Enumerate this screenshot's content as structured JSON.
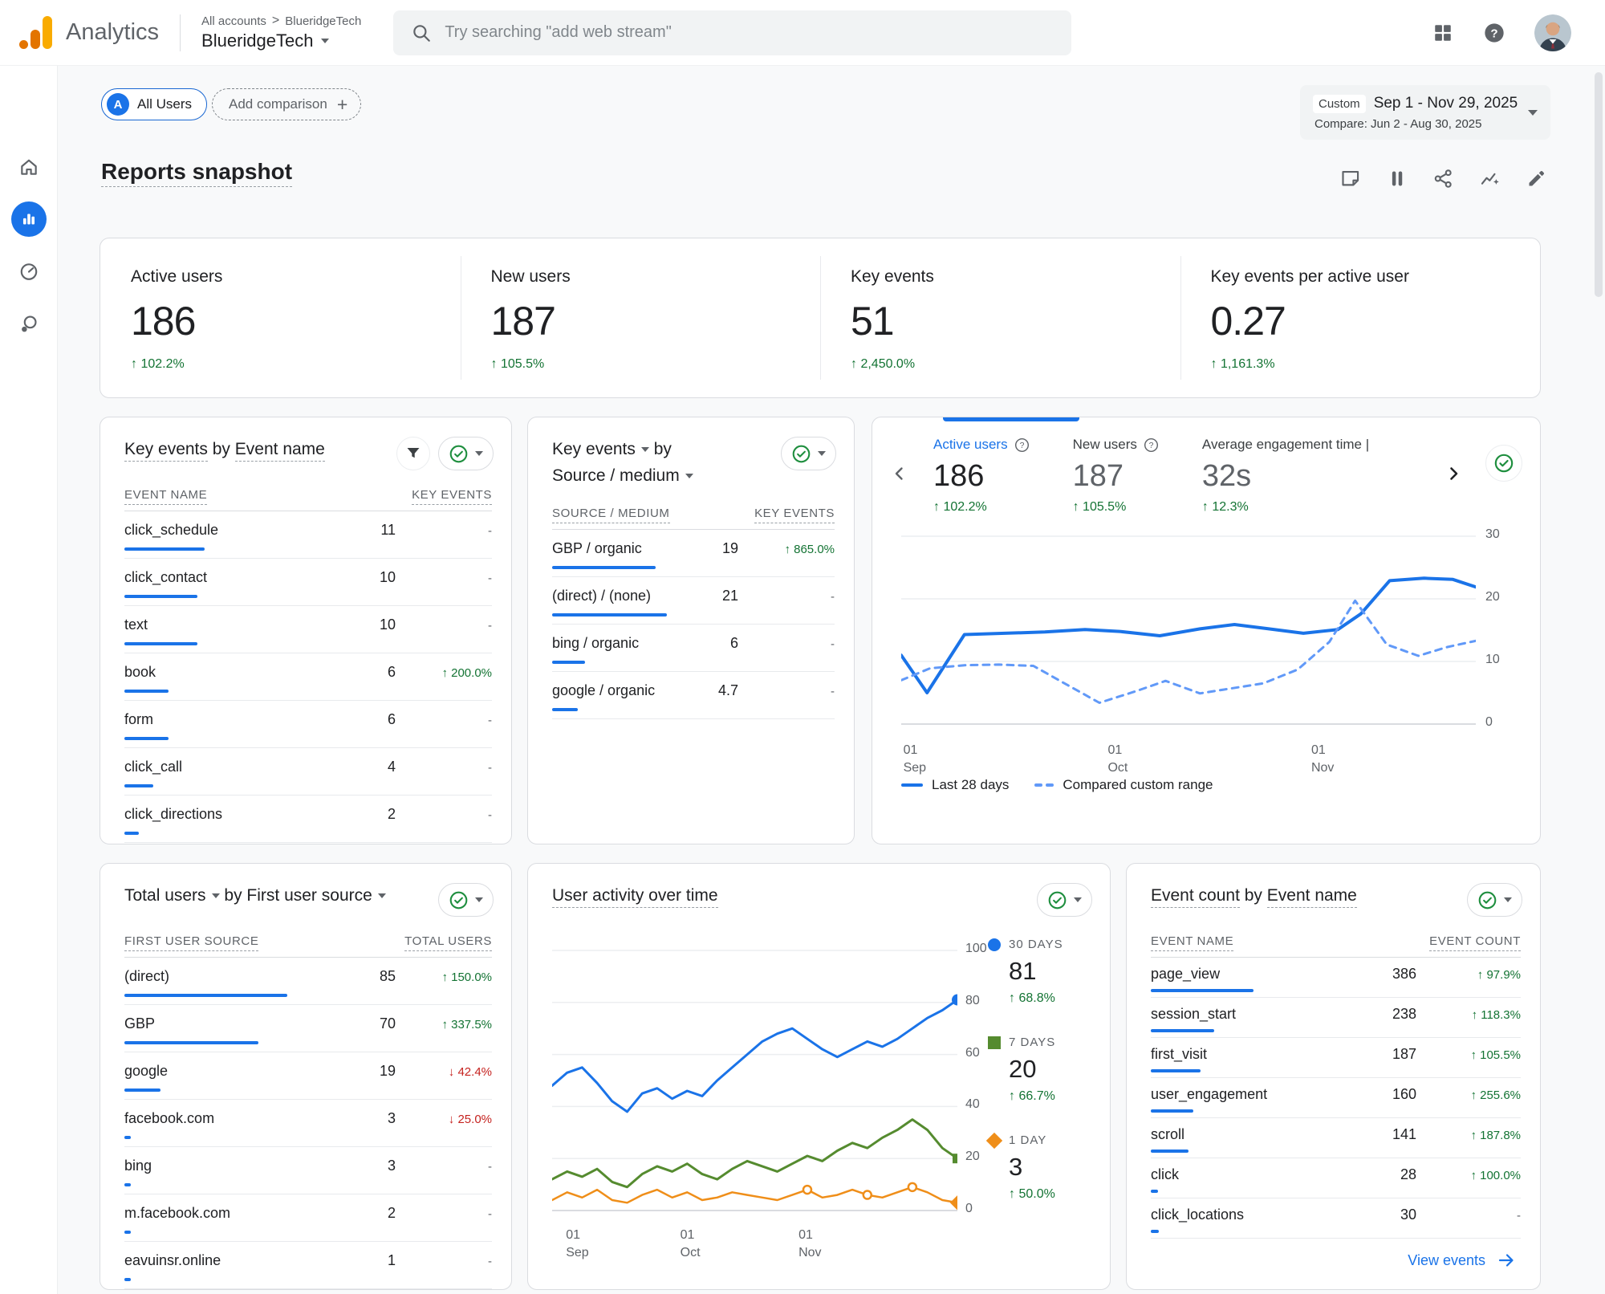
{
  "colors": {
    "accent": "#1a73e8",
    "positive": "#137333",
    "negative": "#c5221f",
    "series_blue": "#1a73e8",
    "series_compare": "#6199f8",
    "series_green": "#558b2f",
    "series_orange": "#ef8e19"
  },
  "header": {
    "product": "Analytics",
    "breadcrumb": {
      "root": "All accounts",
      "separator": ">",
      "account": "BlueridgeTech"
    },
    "property_selector": "BlueridgeTech",
    "search": {
      "placeholder": "Try searching \"add web stream\""
    }
  },
  "controls": {
    "audience_chip": {
      "badge": "A",
      "label": "All Users"
    },
    "add_comparison": "Add comparison",
    "date_picker": {
      "mode": "Custom",
      "range": "Sep 1 - Nov 29, 2025",
      "compare": "Compare: Jun 2 - Aug 30, 2025"
    }
  },
  "page": {
    "title": "Reports snapshot"
  },
  "summary": {
    "cards": [
      {
        "label": "Active users",
        "value": "186",
        "delta": "102.2%",
        "dir": "up"
      },
      {
        "label": "New users",
        "value": "187",
        "delta": "105.5%",
        "dir": "up"
      },
      {
        "label": "Key events",
        "value": "51",
        "delta": "2,450.0%",
        "dir": "up"
      },
      {
        "label": "Key events per active user",
        "value": "0.27",
        "delta": "1,161.3%",
        "dir": "up"
      }
    ]
  },
  "key_events_by_name": {
    "title": {
      "part1": "Key events",
      "part2": "by",
      "part3": "Event name"
    },
    "headers": {
      "dim": "EVENT NAME",
      "metric": "KEY EVENTS"
    },
    "rows": [
      {
        "name": "click_schedule",
        "value": "11",
        "delta": "",
        "dir": ""
      },
      {
        "name": "click_contact",
        "value": "10",
        "delta": "",
        "dir": ""
      },
      {
        "name": "text",
        "value": "10",
        "delta": "",
        "dir": ""
      },
      {
        "name": "book",
        "value": "6",
        "delta": "200.0%",
        "dir": "up"
      },
      {
        "name": "form",
        "value": "6",
        "delta": "",
        "dir": ""
      },
      {
        "name": "click_call",
        "value": "4",
        "delta": "",
        "dir": ""
      },
      {
        "name": "click_directions",
        "value": "2",
        "delta": "",
        "dir": ""
      }
    ]
  },
  "key_events_by_source": {
    "title": {
      "line1": "Key events",
      "line1b": "by",
      "line2": "Source / medium"
    },
    "headers": {
      "dim": "SOURCE / MEDIUM",
      "metric": "KEY EVENTS"
    },
    "rows": [
      {
        "name": "GBP / organic",
        "value": "19",
        "delta": "865.0%",
        "dir": "up"
      },
      {
        "name": "(direct) / (none)",
        "value": "21",
        "delta": "",
        "dir": ""
      },
      {
        "name": "bing / organic",
        "value": "6",
        "delta": "",
        "dir": ""
      },
      {
        "name": "google / organic",
        "value": "4.7",
        "delta": "",
        "dir": ""
      }
    ]
  },
  "trend": {
    "tabs": [
      {
        "label": "Active users",
        "value": "186",
        "delta": "102.2%",
        "dir": "up"
      },
      {
        "label": "New users",
        "value": "187",
        "delta": "105.5%",
        "dir": "up"
      },
      {
        "label": "Average engagement time |",
        "value": "32s",
        "delta": "12.3%",
        "dir": "up"
      }
    ],
    "legend": [
      {
        "label": "Last 28 days",
        "style": "solid"
      },
      {
        "label": "Compared custom range",
        "style": "dashed"
      }
    ],
    "chart_data": {
      "type": "line",
      "ylim": [
        0,
        30
      ],
      "y_ticks": [
        30,
        20,
        10,
        0
      ],
      "x_ticks": [
        {
          "day": "01",
          "month": "Sep",
          "f": 0.012
        },
        {
          "day": "01",
          "month": "Oct",
          "f": 0.368
        },
        {
          "day": "01",
          "month": "Nov",
          "f": 0.722
        }
      ],
      "series": [
        {
          "name": "Last 28 days",
          "points": [
            [
              0,
              11
            ],
            [
              0.045,
              5
            ],
            [
              0.11,
              14.3
            ],
            [
              0.18,
              14.5
            ],
            [
              0.25,
              14.7
            ],
            [
              0.32,
              15.1
            ],
            [
              0.38,
              14.8
            ],
            [
              0.45,
              14.1
            ],
            [
              0.52,
              15.2
            ],
            [
              0.58,
              15.9
            ],
            [
              0.64,
              15.2
            ],
            [
              0.7,
              14.5
            ],
            [
              0.76,
              15.1
            ],
            [
              0.8,
              17.6
            ],
            [
              0.85,
              22.9
            ],
            [
              0.91,
              23.3
            ],
            [
              0.96,
              23.1
            ],
            [
              1,
              21.9
            ]
          ]
        },
        {
          "name": "Compared custom range",
          "points": [
            [
              0,
              7
            ],
            [
              0.05,
              8.9
            ],
            [
              0.11,
              9.4
            ],
            [
              0.17,
              9.5
            ],
            [
              0.23,
              9.3
            ],
            [
              0.29,
              6.2
            ],
            [
              0.345,
              3.4
            ],
            [
              0.41,
              5.3
            ],
            [
              0.46,
              6.9
            ],
            [
              0.52,
              4.9
            ],
            [
              0.575,
              5.7
            ],
            [
              0.63,
              6.5
            ],
            [
              0.69,
              8.7
            ],
            [
              0.745,
              13.1
            ],
            [
              0.79,
              19.7
            ],
            [
              0.845,
              12.7
            ],
            [
              0.9,
              10.9
            ],
            [
              0.95,
              12.3
            ],
            [
              1,
              13.3
            ]
          ]
        }
      ]
    }
  },
  "user_sources": {
    "title": {
      "part1": "Total users",
      "part2": "by",
      "part3": "First user source"
    },
    "headers": {
      "dim": "FIRST USER SOURCE",
      "metric": "TOTAL USERS"
    },
    "rows": [
      {
        "name": "(direct)",
        "value": "85",
        "delta": "150.0%",
        "dir": "up"
      },
      {
        "name": "GBP",
        "value": "70",
        "delta": "337.5%",
        "dir": "up"
      },
      {
        "name": "google",
        "value": "19",
        "delta": "42.4%",
        "dir": "down"
      },
      {
        "name": "facebook.com",
        "value": "3",
        "delta": "25.0%",
        "dir": "down"
      },
      {
        "name": "bing",
        "value": "3",
        "delta": "",
        "dir": ""
      },
      {
        "name": "m.facebook.com",
        "value": "2",
        "delta": "",
        "dir": ""
      },
      {
        "name": "eavuinsr.online",
        "value": "1",
        "delta": "",
        "dir": ""
      }
    ]
  },
  "activity": {
    "title": "User activity over time",
    "legend": [
      {
        "label": "30 DAYS",
        "value": "81",
        "delta": "68.8%",
        "dir": "up",
        "marker": "circle"
      },
      {
        "label": "7 DAYS",
        "value": "20",
        "delta": "66.7%",
        "dir": "up",
        "marker": "square"
      },
      {
        "label": "1 DAY",
        "value": "3",
        "delta": "50.0%",
        "dir": "up",
        "marker": "diamond"
      }
    ],
    "chart_data": {
      "type": "line",
      "ylim": [
        0,
        100
      ],
      "y_ticks": [
        100,
        80,
        60,
        40,
        20,
        0
      ],
      "x_ticks": [
        {
          "day": "01",
          "month": "Sep",
          "f": 0.046
        },
        {
          "day": "01",
          "month": "Oct",
          "f": 0.328
        },
        {
          "day": "01",
          "month": "Nov",
          "f": 0.62
        }
      ],
      "series": [
        {
          "name": "30 days",
          "values": [
            48,
            53,
            55,
            49,
            42,
            38,
            45,
            47,
            43,
            46,
            44,
            50,
            55,
            60,
            65,
            68,
            70,
            66,
            62,
            59,
            62,
            65,
            63,
            66,
            70,
            74,
            77,
            81
          ]
        },
        {
          "name": "7 days",
          "values": [
            12,
            15,
            13,
            16,
            11,
            9,
            14,
            17,
            15,
            18,
            14,
            12,
            16,
            19,
            17,
            15,
            18,
            21,
            19,
            23,
            26,
            24,
            28,
            31,
            35,
            31,
            24,
            20
          ]
        },
        {
          "name": "1 day",
          "values": [
            4,
            7,
            5,
            8,
            4,
            3,
            6,
            8,
            5,
            7,
            4,
            5,
            7,
            6,
            5,
            4,
            6,
            8,
            5,
            6,
            8,
            6,
            5,
            7,
            9,
            7,
            4,
            3
          ]
        }
      ]
    }
  },
  "event_counts": {
    "title": {
      "part1": "Event count",
      "part2": "by",
      "part3": "Event name"
    },
    "headers": {
      "dim": "EVENT NAME",
      "metric": "EVENT COUNT"
    },
    "rows": [
      {
        "name": "page_view",
        "value": "386",
        "delta": "97.9%",
        "dir": "up"
      },
      {
        "name": "session_start",
        "value": "238",
        "delta": "118.3%",
        "dir": "up"
      },
      {
        "name": "first_visit",
        "value": "187",
        "delta": "105.5%",
        "dir": "up"
      },
      {
        "name": "user_engagement",
        "value": "160",
        "delta": "255.6%",
        "dir": "up"
      },
      {
        "name": "scroll",
        "value": "141",
        "delta": "187.8%",
        "dir": "up"
      },
      {
        "name": "click",
        "value": "28",
        "delta": "100.0%",
        "dir": "up"
      },
      {
        "name": "click_locations",
        "value": "30",
        "delta": "",
        "dir": ""
      }
    ],
    "link": "View events"
  }
}
